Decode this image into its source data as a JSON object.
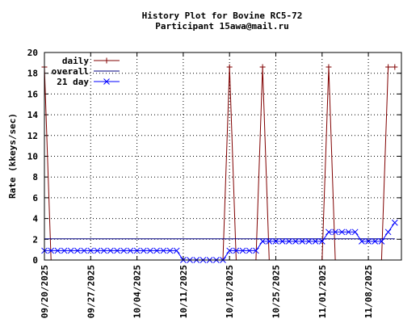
{
  "chart_data": {
    "type": "line",
    "title": "History Plot for Bovine RC5-72",
    "subtitle": "Participant 15awa@mail.ru",
    "ylabel": "Rate (kkeys/sec)",
    "xlabel": "",
    "ylim": [
      0,
      20
    ],
    "yticks": [
      0,
      2,
      4,
      6,
      8,
      10,
      12,
      14,
      16,
      18,
      20
    ],
    "xlim": [
      "2025-09-20",
      "2025-11-13"
    ],
    "xticks": [
      "09/20/2025",
      "09/27/2025",
      "10/04/2025",
      "10/11/2025",
      "10/18/2025",
      "10/25/2025",
      "11/01/2025",
      "11/08/2025"
    ],
    "xtick_dates": [
      "2025-09-20",
      "2025-09-27",
      "2025-10-04",
      "2025-10-11",
      "2025-10-18",
      "2025-10-25",
      "2025-11-01",
      "2025-11-08"
    ],
    "grid": true,
    "legend": "top-left",
    "series": [
      {
        "name": "daily",
        "color": "#800000",
        "marker": "plus",
        "points": [
          [
            "2025-09-20",
            18.6
          ],
          [
            "2025-09-21",
            0
          ],
          [
            "2025-10-17",
            0
          ],
          [
            "2025-10-18",
            18.6
          ],
          [
            "2025-10-19",
            0
          ],
          [
            "2025-10-22",
            0
          ],
          [
            "2025-10-23",
            18.6
          ],
          [
            "2025-10-24",
            0
          ],
          [
            "2025-11-01",
            0
          ],
          [
            "2025-11-02",
            18.6
          ],
          [
            "2025-11-03",
            0
          ],
          [
            "2025-11-10",
            0
          ],
          [
            "2025-11-11",
            18.6
          ],
          [
            "2025-11-12",
            18.6
          ]
        ]
      },
      {
        "name": "overall",
        "color": "#000080",
        "marker": "none",
        "points": [
          [
            "2025-09-20",
            2.05
          ],
          [
            "2025-11-12",
            2.05
          ]
        ]
      },
      {
        "name": "21 day",
        "color": "#0000ff",
        "marker": "x",
        "points": [
          [
            "2025-09-20",
            0.9
          ],
          [
            "2025-09-21",
            0.9
          ],
          [
            "2025-09-22",
            0.9
          ],
          [
            "2025-09-23",
            0.9
          ],
          [
            "2025-09-24",
            0.9
          ],
          [
            "2025-09-25",
            0.9
          ],
          [
            "2025-09-26",
            0.9
          ],
          [
            "2025-09-27",
            0.9
          ],
          [
            "2025-09-28",
            0.9
          ],
          [
            "2025-09-29",
            0.9
          ],
          [
            "2025-09-30",
            0.9
          ],
          [
            "2025-10-01",
            0.9
          ],
          [
            "2025-10-02",
            0.9
          ],
          [
            "2025-10-03",
            0.9
          ],
          [
            "2025-10-04",
            0.9
          ],
          [
            "2025-10-05",
            0.9
          ],
          [
            "2025-10-06",
            0.9
          ],
          [
            "2025-10-07",
            0.9
          ],
          [
            "2025-10-08",
            0.9
          ],
          [
            "2025-10-09",
            0.9
          ],
          [
            "2025-10-10",
            0.9
          ],
          [
            "2025-10-11",
            0
          ],
          [
            "2025-10-12",
            0
          ],
          [
            "2025-10-13",
            0
          ],
          [
            "2025-10-14",
            0
          ],
          [
            "2025-10-15",
            0
          ],
          [
            "2025-10-16",
            0
          ],
          [
            "2025-10-17",
            0
          ],
          [
            "2025-10-18",
            0.9
          ],
          [
            "2025-10-19",
            0.9
          ],
          [
            "2025-10-20",
            0.9
          ],
          [
            "2025-10-21",
            0.9
          ],
          [
            "2025-10-22",
            0.9
          ],
          [
            "2025-10-23",
            1.8
          ],
          [
            "2025-10-24",
            1.8
          ],
          [
            "2025-10-25",
            1.8
          ],
          [
            "2025-10-26",
            1.8
          ],
          [
            "2025-10-27",
            1.8
          ],
          [
            "2025-10-28",
            1.8
          ],
          [
            "2025-10-29",
            1.8
          ],
          [
            "2025-10-30",
            1.8
          ],
          [
            "2025-10-31",
            1.8
          ],
          [
            "2025-11-01",
            1.8
          ],
          [
            "2025-11-02",
            2.7
          ],
          [
            "2025-11-03",
            2.7
          ],
          [
            "2025-11-04",
            2.7
          ],
          [
            "2025-11-05",
            2.7
          ],
          [
            "2025-11-06",
            2.7
          ],
          [
            "2025-11-07",
            1.8
          ],
          [
            "2025-11-08",
            1.8
          ],
          [
            "2025-11-09",
            1.8
          ],
          [
            "2025-11-10",
            1.8
          ],
          [
            "2025-11-11",
            2.7
          ],
          [
            "2025-11-12",
            3.6
          ]
        ]
      }
    ]
  }
}
